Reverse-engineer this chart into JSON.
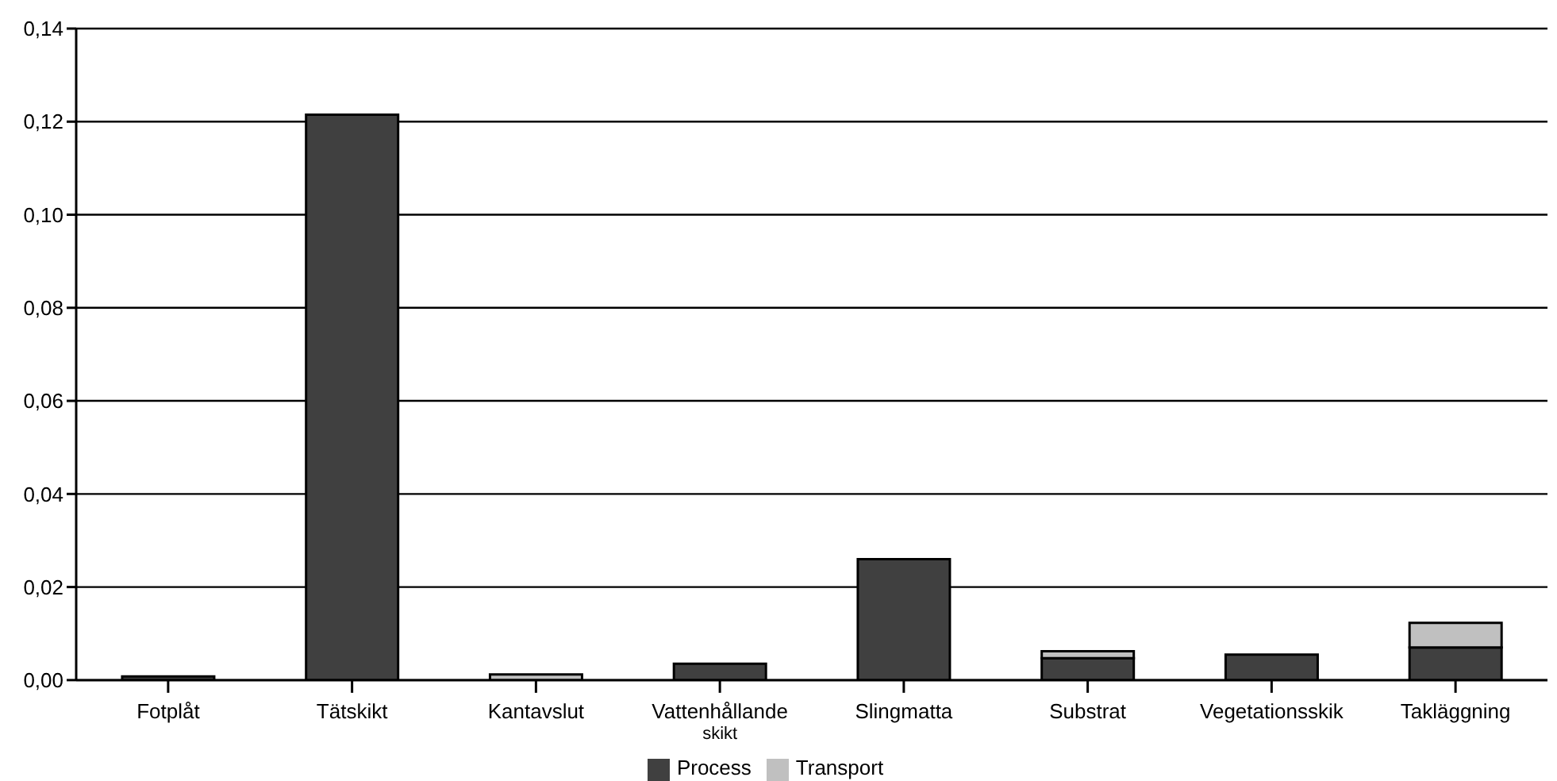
{
  "chart_data": {
    "type": "bar",
    "stacked": true,
    "categories": [
      "Fotplåt",
      "Tätskikt",
      "Kantavslut",
      "Vattenhållande skikt",
      "Slingmatta",
      "Substrat",
      "Vegetationsskik",
      "Takläggning"
    ],
    "series": [
      {
        "name": "Process",
        "color": "#404040",
        "values": [
          0.0008,
          0.1215,
          0,
          0.0035,
          0.026,
          0.0047,
          0.0055,
          0.007
        ]
      },
      {
        "name": "Transport",
        "color": "#c0c0c0",
        "values": [
          0,
          0,
          0.0012,
          0,
          0,
          0.0015,
          0,
          0.0053
        ]
      }
    ],
    "ylim": [
      0,
      0.14
    ],
    "yticks": [
      {
        "value": 0,
        "label": "0,00"
      },
      {
        "value": 0.02,
        "label": "0,02"
      },
      {
        "value": 0.04,
        "label": "0,04"
      },
      {
        "value": 0.06,
        "label": "0,06"
      },
      {
        "value": 0.08,
        "label": "0,08"
      },
      {
        "value": 0.1,
        "label": "0,10"
      },
      {
        "value": 0.12,
        "label": "0,12"
      },
      {
        "value": 0.14,
        "label": "0,14"
      }
    ],
    "grid": "y",
    "legend": "bottom"
  }
}
